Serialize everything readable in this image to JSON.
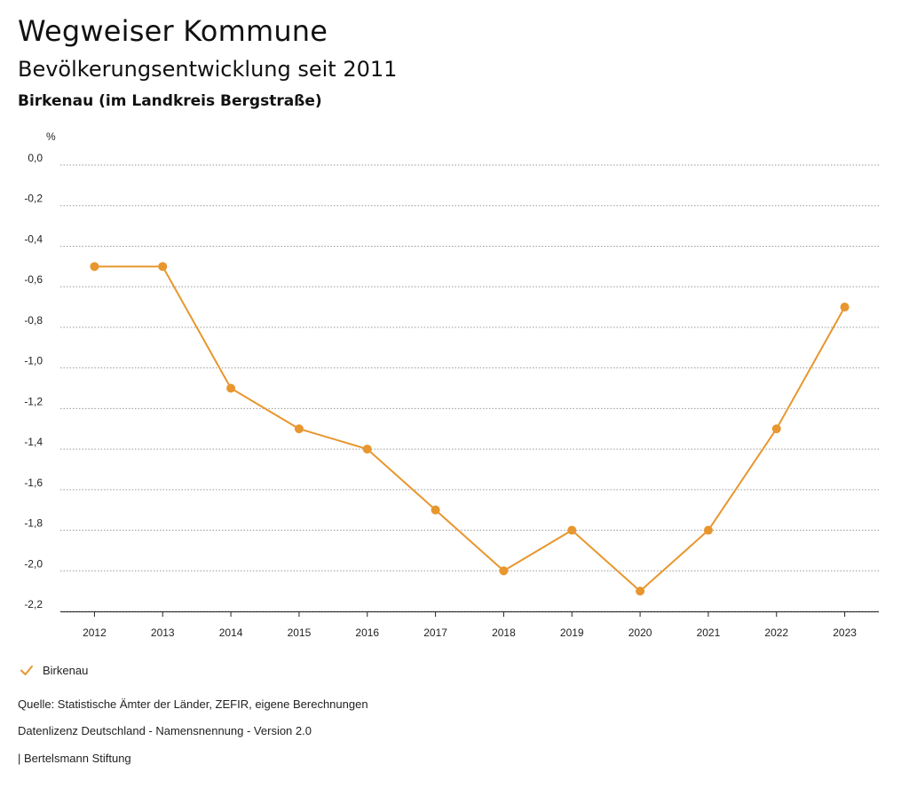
{
  "header": {
    "title": "Wegweiser Kommune",
    "subtitle": "Bevölkerungsentwicklung seit 2011",
    "region": "Birkenau (im Landkreis Bergstraße)"
  },
  "chart_data": {
    "type": "line",
    "title": "Bevölkerungsentwicklung seit 2011",
    "ylabel": "%",
    "xlabel": "",
    "x": [
      "2012",
      "2013",
      "2014",
      "2015",
      "2016",
      "2017",
      "2018",
      "2019",
      "2020",
      "2021",
      "2022",
      "2023"
    ],
    "y_ticks": [
      "0,0",
      "-0,2",
      "-0,4",
      "-0,6",
      "-0,8",
      "-1,0",
      "-1,2",
      "-1,4",
      "-1,6",
      "-1,8",
      "-2,0",
      "-2,2"
    ],
    "ylim": [
      -2.2,
      0.0
    ],
    "grid": true,
    "series": [
      {
        "name": "Birkenau",
        "color": "#E8962E",
        "values": [
          -0.5,
          -0.5,
          -1.1,
          -1.3,
          -1.4,
          -1.7,
          -2.0,
          -1.8,
          -2.1,
          -1.8,
          -1.3,
          -0.7
        ]
      }
    ],
    "legend": "bottom-left"
  },
  "legend": {
    "label": "Birkenau",
    "icon": "check-icon"
  },
  "footer": {
    "source": "Quelle: Statistische Ämter der Länder, ZEFIR, eigene Berechnungen",
    "license": "Datenlizenz Deutschland - Namensnennung - Version 2.0",
    "brand": "| Bertelsmann Stiftung"
  }
}
